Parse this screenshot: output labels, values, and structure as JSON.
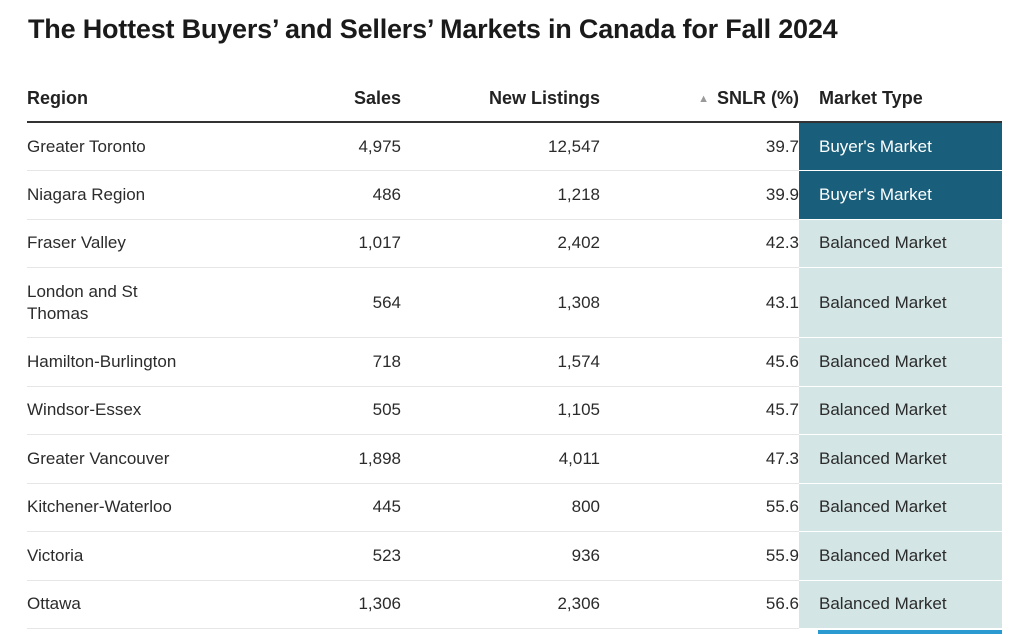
{
  "title": "The Hottest Buyers’ and Sellers’ Markets in Canada for Fall 2024",
  "colors": {
    "buyer": "#195e7a",
    "balanced": "#d3e6e5",
    "next_row_accent": "#2a9ad0"
  },
  "icons": {
    "sort": "sort-ascending-triangle-icon"
  },
  "chart_data": {
    "type": "table",
    "title": "The Hottest Buyers’ and Sellers’ Markets in Canada for Fall 2024",
    "sorted_by": "SNLR (%)",
    "sort_order": "ascending",
    "columns": [
      "Region",
      "Sales",
      "New Listings",
      "SNLR (%)",
      "Market Type"
    ],
    "rows": [
      {
        "region": "Greater Toronto",
        "sales": "4,975",
        "new_listings": "12,547",
        "snlr": "39.7",
        "market_type": "Buyer's Market",
        "kind": "buyer"
      },
      {
        "region": "Niagara Region",
        "sales": "486",
        "new_listings": "1,218",
        "snlr": "39.9",
        "market_type": "Buyer's Market",
        "kind": "buyer"
      },
      {
        "region": "Fraser Valley",
        "sales": "1,017",
        "new_listings": "2,402",
        "snlr": "42.3",
        "market_type": "Balanced Market",
        "kind": "balanced"
      },
      {
        "region": "London and St Thomas",
        "sales": "564",
        "new_listings": "1,308",
        "snlr": "43.1",
        "market_type": "Balanced Market",
        "kind": "balanced"
      },
      {
        "region": "Hamilton-Burlington",
        "sales": "718",
        "new_listings": "1,574",
        "snlr": "45.6",
        "market_type": "Balanced Market",
        "kind": "balanced"
      },
      {
        "region": "Windsor-Essex",
        "sales": "505",
        "new_listings": "1,105",
        "snlr": "45.7",
        "market_type": "Balanced Market",
        "kind": "balanced"
      },
      {
        "region": "Greater Vancouver",
        "sales": "1,898",
        "new_listings": "4,011",
        "snlr": "47.3",
        "market_type": "Balanced Market",
        "kind": "balanced"
      },
      {
        "region": "Kitchener-Waterloo",
        "sales": "445",
        "new_listings": "800",
        "snlr": "55.6",
        "market_type": "Balanced Market",
        "kind": "balanced"
      },
      {
        "region": "Victoria",
        "sales": "523",
        "new_listings": "936",
        "snlr": "55.9",
        "market_type": "Balanced Market",
        "kind": "balanced"
      },
      {
        "region": "Ottawa",
        "sales": "1,306",
        "new_listings": "2,306",
        "snlr": "56.6",
        "market_type": "Balanced Market",
        "kind": "balanced"
      }
    ]
  }
}
